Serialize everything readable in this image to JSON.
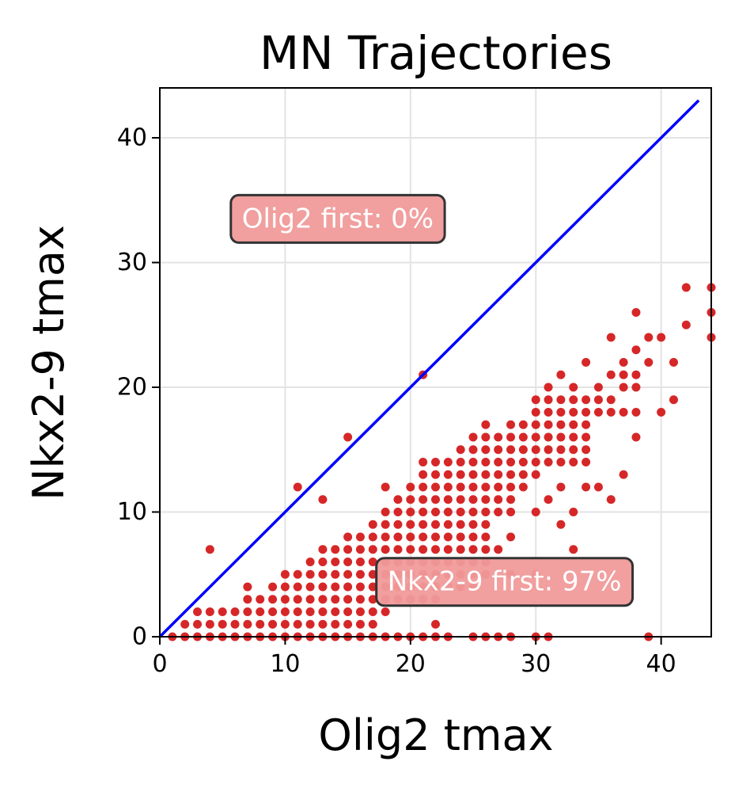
{
  "chart_data": {
    "type": "scatter",
    "title": "MN Trajectories",
    "xlabel": "Olig2 tmax",
    "ylabel": "Nkx2-9 tmax",
    "xlim": [
      0,
      44
    ],
    "ylim": [
      0,
      44
    ],
    "xticks": [
      "0",
      "10",
      "20",
      "30",
      "40"
    ],
    "yticks": [
      "0",
      "10",
      "20",
      "30",
      "40"
    ],
    "grid": true,
    "point_color": "#d62728",
    "diagonal_line": {
      "from": [
        0,
        0
      ],
      "to": [
        43,
        43
      ],
      "color": "#0000ff"
    },
    "annotations": [
      {
        "text": "Olig2 first: 0%",
        "x": 14.2,
        "y": 33.5
      },
      {
        "text": "Nkx2-9 first: 97%",
        "x": 27.5,
        "y": 4.4
      }
    ],
    "points": [
      [
        1,
        0
      ],
      [
        2,
        0
      ],
      [
        3,
        0
      ],
      [
        4,
        0
      ],
      [
        5,
        0
      ],
      [
        6,
        0
      ],
      [
        7,
        0
      ],
      [
        8,
        0
      ],
      [
        9,
        0
      ],
      [
        10,
        0
      ],
      [
        11,
        0
      ],
      [
        12,
        0
      ],
      [
        13,
        0
      ],
      [
        14,
        0
      ],
      [
        15,
        0
      ],
      [
        16,
        0
      ],
      [
        17,
        0
      ],
      [
        18,
        0
      ],
      [
        19,
        0
      ],
      [
        20,
        0
      ],
      [
        21,
        0
      ],
      [
        22,
        0
      ],
      [
        23,
        0
      ],
      [
        25,
        0
      ],
      [
        26,
        0
      ],
      [
        27,
        0
      ],
      [
        28,
        0
      ],
      [
        30,
        0
      ],
      [
        31,
        0
      ],
      [
        39,
        0
      ],
      [
        2,
        1
      ],
      [
        3,
        1
      ],
      [
        4,
        1
      ],
      [
        5,
        1
      ],
      [
        6,
        1
      ],
      [
        7,
        1
      ],
      [
        8,
        1
      ],
      [
        9,
        1
      ],
      [
        10,
        1
      ],
      [
        11,
        1
      ],
      [
        12,
        1
      ],
      [
        13,
        1
      ],
      [
        14,
        1
      ],
      [
        15,
        1
      ],
      [
        16,
        1
      ],
      [
        17,
        1
      ],
      [
        22,
        1
      ],
      [
        3,
        2
      ],
      [
        4,
        2
      ],
      [
        5,
        2
      ],
      [
        6,
        2
      ],
      [
        7,
        2
      ],
      [
        8,
        2
      ],
      [
        9,
        2
      ],
      [
        10,
        2
      ],
      [
        11,
        2
      ],
      [
        12,
        2
      ],
      [
        13,
        2
      ],
      [
        14,
        2
      ],
      [
        15,
        2
      ],
      [
        16,
        2
      ],
      [
        17,
        2
      ],
      [
        18,
        2
      ],
      [
        7,
        3
      ],
      [
        8,
        3
      ],
      [
        9,
        3
      ],
      [
        10,
        3
      ],
      [
        11,
        3
      ],
      [
        12,
        3
      ],
      [
        13,
        3
      ],
      [
        14,
        3
      ],
      [
        15,
        3
      ],
      [
        16,
        3
      ],
      [
        17,
        3
      ],
      [
        18,
        3
      ],
      [
        19,
        3
      ],
      [
        20,
        3
      ],
      [
        21,
        3
      ],
      [
        22,
        3
      ],
      [
        7,
        4
      ],
      [
        9,
        4
      ],
      [
        10,
        4
      ],
      [
        11,
        4
      ],
      [
        12,
        4
      ],
      [
        13,
        4
      ],
      [
        14,
        4
      ],
      [
        15,
        4
      ],
      [
        16,
        4
      ],
      [
        17,
        4
      ],
      [
        18,
        4
      ],
      [
        19,
        4
      ],
      [
        20,
        4
      ],
      [
        21,
        4
      ],
      [
        22,
        4
      ],
      [
        23,
        4
      ],
      [
        24,
        4
      ],
      [
        25,
        4
      ],
      [
        10,
        5
      ],
      [
        11,
        5
      ],
      [
        12,
        5
      ],
      [
        13,
        5
      ],
      [
        14,
        5
      ],
      [
        15,
        5
      ],
      [
        16,
        5
      ],
      [
        17,
        5
      ],
      [
        18,
        5
      ],
      [
        19,
        5
      ],
      [
        20,
        5
      ],
      [
        21,
        5
      ],
      [
        22,
        5
      ],
      [
        23,
        5
      ],
      [
        24,
        5
      ],
      [
        25,
        5
      ],
      [
        26,
        5
      ],
      [
        28,
        5
      ],
      [
        30,
        5
      ],
      [
        12,
        6
      ],
      [
        13,
        6
      ],
      [
        14,
        6
      ],
      [
        15,
        6
      ],
      [
        16,
        6
      ],
      [
        17,
        6
      ],
      [
        18,
        6
      ],
      [
        19,
        6
      ],
      [
        20,
        6
      ],
      [
        21,
        6
      ],
      [
        22,
        6
      ],
      [
        23,
        6
      ],
      [
        24,
        6
      ],
      [
        25,
        6
      ],
      [
        26,
        6
      ],
      [
        4,
        7
      ],
      [
        13,
        7
      ],
      [
        14,
        7
      ],
      [
        15,
        7
      ],
      [
        16,
        7
      ],
      [
        17,
        7
      ],
      [
        18,
        7
      ],
      [
        19,
        7
      ],
      [
        20,
        7
      ],
      [
        21,
        7
      ],
      [
        22,
        7
      ],
      [
        23,
        7
      ],
      [
        24,
        7
      ],
      [
        25,
        7
      ],
      [
        26,
        7
      ],
      [
        27,
        7
      ],
      [
        33,
        7
      ],
      [
        15,
        8
      ],
      [
        16,
        8
      ],
      [
        17,
        8
      ],
      [
        18,
        8
      ],
      [
        19,
        8
      ],
      [
        20,
        8
      ],
      [
        21,
        8
      ],
      [
        22,
        8
      ],
      [
        23,
        8
      ],
      [
        24,
        8
      ],
      [
        25,
        8
      ],
      [
        26,
        8
      ],
      [
        28,
        8
      ],
      [
        17,
        9
      ],
      [
        18,
        9
      ],
      [
        19,
        9
      ],
      [
        20,
        9
      ],
      [
        21,
        9
      ],
      [
        22,
        9
      ],
      [
        23,
        9
      ],
      [
        24,
        9
      ],
      [
        25,
        9
      ],
      [
        26,
        9
      ],
      [
        32,
        9
      ],
      [
        18,
        10
      ],
      [
        19,
        10
      ],
      [
        20,
        10
      ],
      [
        21,
        10
      ],
      [
        22,
        10
      ],
      [
        23,
        10
      ],
      [
        24,
        10
      ],
      [
        25,
        10
      ],
      [
        26,
        10
      ],
      [
        27,
        10
      ],
      [
        28,
        10
      ],
      [
        30,
        10
      ],
      [
        33,
        10
      ],
      [
        13,
        11
      ],
      [
        19,
        11
      ],
      [
        20,
        11
      ],
      [
        21,
        11
      ],
      [
        22,
        11
      ],
      [
        23,
        11
      ],
      [
        24,
        11
      ],
      [
        25,
        11
      ],
      [
        26,
        11
      ],
      [
        27,
        11
      ],
      [
        28,
        11
      ],
      [
        31,
        11
      ],
      [
        36,
        11
      ],
      [
        11,
        12
      ],
      [
        18,
        12
      ],
      [
        20,
        12
      ],
      [
        21,
        12
      ],
      [
        22,
        12
      ],
      [
        23,
        12
      ],
      [
        24,
        12
      ],
      [
        25,
        12
      ],
      [
        26,
        12
      ],
      [
        27,
        12
      ],
      [
        28,
        12
      ],
      [
        29,
        12
      ],
      [
        32,
        12
      ],
      [
        34,
        12
      ],
      [
        35,
        12
      ],
      [
        21,
        13
      ],
      [
        22,
        13
      ],
      [
        23,
        13
      ],
      [
        24,
        13
      ],
      [
        25,
        13
      ],
      [
        26,
        13
      ],
      [
        27,
        13
      ],
      [
        28,
        13
      ],
      [
        29,
        13
      ],
      [
        30,
        13
      ],
      [
        37,
        13
      ],
      [
        21,
        14
      ],
      [
        22,
        14
      ],
      [
        23,
        14
      ],
      [
        24,
        14
      ],
      [
        25,
        14
      ],
      [
        26,
        14
      ],
      [
        27,
        14
      ],
      [
        28,
        14
      ],
      [
        29,
        14
      ],
      [
        30,
        14
      ],
      [
        31,
        14
      ],
      [
        32,
        14
      ],
      [
        33,
        14
      ],
      [
        34,
        14
      ],
      [
        24,
        15
      ],
      [
        25,
        15
      ],
      [
        26,
        15
      ],
      [
        27,
        15
      ],
      [
        28,
        15
      ],
      [
        29,
        15
      ],
      [
        30,
        15
      ],
      [
        31,
        15
      ],
      [
        32,
        15
      ],
      [
        33,
        15
      ],
      [
        34,
        15
      ],
      [
        15,
        16
      ],
      [
        25,
        16
      ],
      [
        26,
        16
      ],
      [
        27,
        16
      ],
      [
        28,
        16
      ],
      [
        29,
        16
      ],
      [
        30,
        16
      ],
      [
        31,
        16
      ],
      [
        32,
        16
      ],
      [
        33,
        16
      ],
      [
        34,
        16
      ],
      [
        38,
        16
      ],
      [
        26,
        17
      ],
      [
        28,
        17
      ],
      [
        29,
        17
      ],
      [
        30,
        17
      ],
      [
        31,
        17
      ],
      [
        32,
        17
      ],
      [
        33,
        17
      ],
      [
        34,
        17
      ],
      [
        30,
        18
      ],
      [
        31,
        18
      ],
      [
        32,
        18
      ],
      [
        33,
        18
      ],
      [
        34,
        18
      ],
      [
        35,
        18
      ],
      [
        36,
        18
      ],
      [
        37,
        18
      ],
      [
        38,
        18
      ],
      [
        40,
        18
      ],
      [
        30,
        19
      ],
      [
        31,
        19
      ],
      [
        32,
        19
      ],
      [
        33,
        19
      ],
      [
        34,
        19
      ],
      [
        35,
        19
      ],
      [
        36,
        19
      ],
      [
        41,
        19
      ],
      [
        31,
        20
      ],
      [
        33,
        20
      ],
      [
        35,
        20
      ],
      [
        37,
        20
      ],
      [
        38,
        20
      ],
      [
        21,
        21
      ],
      [
        32,
        21
      ],
      [
        36,
        21
      ],
      [
        37,
        21
      ],
      [
        38,
        21
      ],
      [
        34,
        22
      ],
      [
        37,
        22
      ],
      [
        39,
        22
      ],
      [
        41,
        22
      ],
      [
        38,
        23
      ],
      [
        36,
        24
      ],
      [
        39,
        24
      ],
      [
        40,
        24
      ],
      [
        44,
        24
      ],
      [
        42,
        25
      ],
      [
        38,
        26
      ],
      [
        44,
        26
      ],
      [
        42,
        28
      ],
      [
        44,
        28
      ]
    ]
  }
}
